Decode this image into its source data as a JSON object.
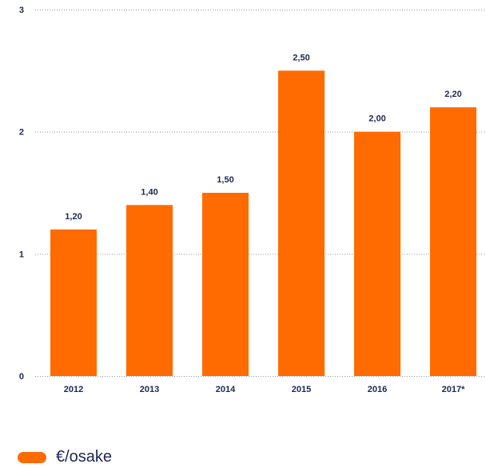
{
  "chart_data": {
    "type": "bar",
    "categories": [
      "2012",
      "2013",
      "2014",
      "2015",
      "2016",
      "2017*"
    ],
    "series": [
      {
        "name": "€/osake",
        "values": [
          1.2,
          1.4,
          1.5,
          2.5,
          2.0,
          2.2
        ],
        "labels": [
          "1,20",
          "1,40",
          "1,50",
          "2,50",
          "2,00",
          "2,20"
        ],
        "color": "#ff6b00"
      }
    ],
    "y_ticks": [
      0,
      1,
      2,
      3
    ],
    "ylim": [
      0,
      3
    ],
    "grid": true,
    "legend_position": "bottom-left"
  },
  "legend": {
    "label": "€/osake",
    "color": "#ff6b00"
  }
}
